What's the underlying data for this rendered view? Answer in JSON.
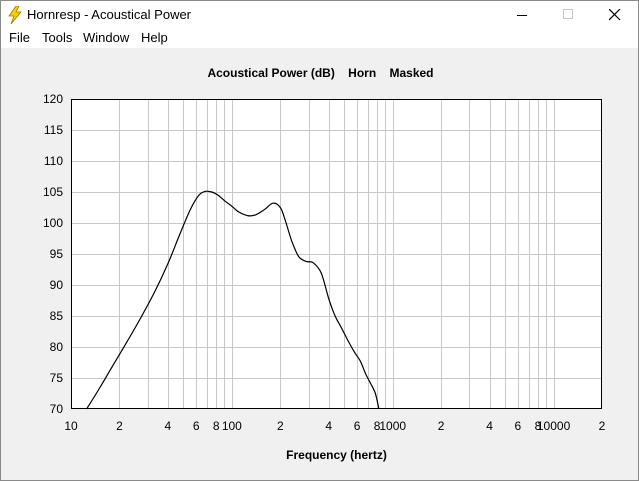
{
  "window": {
    "title": "Hornresp - Acoustical Power",
    "icon": "lightning-bolt-icon"
  },
  "menu": {
    "items": [
      {
        "label": "File"
      },
      {
        "label": "Tools"
      },
      {
        "label": "Window"
      },
      {
        "label": "Help"
      }
    ]
  },
  "chart_data": {
    "type": "line",
    "title": "Acoustical Power (dB)    Horn    Masked",
    "xlabel": "Frequency (hertz)",
    "ylabel": "",
    "x_scale": "log",
    "xlim": [
      10,
      20000
    ],
    "ylim": [
      70,
      120
    ],
    "y_ticks": [
      70,
      75,
      80,
      85,
      90,
      95,
      100,
      105,
      110,
      115,
      120
    ],
    "x_tick_labels": [
      {
        "value": 10,
        "label": "10"
      },
      {
        "value": 20,
        "label": "2"
      },
      {
        "value": 40,
        "label": "4"
      },
      {
        "value": 60,
        "label": "6"
      },
      {
        "value": 80,
        "label": "8"
      },
      {
        "value": 100,
        "label": "100"
      },
      {
        "value": 200,
        "label": "2"
      },
      {
        "value": 400,
        "label": "4"
      },
      {
        "value": 600,
        "label": "6"
      },
      {
        "value": 800,
        "label": "8"
      },
      {
        "value": 1000,
        "label": "1000"
      },
      {
        "value": 2000,
        "label": "2"
      },
      {
        "value": 4000,
        "label": "4"
      },
      {
        "value": 6000,
        "label": "6"
      },
      {
        "value": 8000,
        "label": "8"
      },
      {
        "value": 10000,
        "label": "10000"
      },
      {
        "value": 20000,
        "label": "2"
      }
    ],
    "grid": true,
    "line_color": "#000000",
    "grid_color": "#c8c8c8",
    "series": [
      {
        "x": [
          12.5,
          15,
          18,
          22,
          27,
          33,
          40,
          47,
          55,
          62,
          68,
          75,
          82,
          90,
          100,
          110,
          125,
          140,
          160,
          180,
          200,
          215,
          235,
          260,
          290,
          320,
          360,
          400,
          440,
          480,
          530,
          580,
          630,
          680,
          730,
          780,
          820
        ],
        "y": [
          70,
          73.3,
          76.8,
          80.6,
          84.6,
          88.8,
          93.4,
          97.9,
          102.1,
          104.4,
          105.1,
          105.0,
          104.5,
          103.6,
          102.7,
          101.8,
          101.2,
          101.3,
          102.2,
          103.2,
          102.5,
          100.4,
          97.2,
          94.6,
          93.8,
          93.6,
          91.9,
          87.8,
          84.9,
          83.1,
          80.9,
          79.1,
          77.7,
          75.6,
          74.1,
          72.5,
          70
        ]
      }
    ]
  }
}
